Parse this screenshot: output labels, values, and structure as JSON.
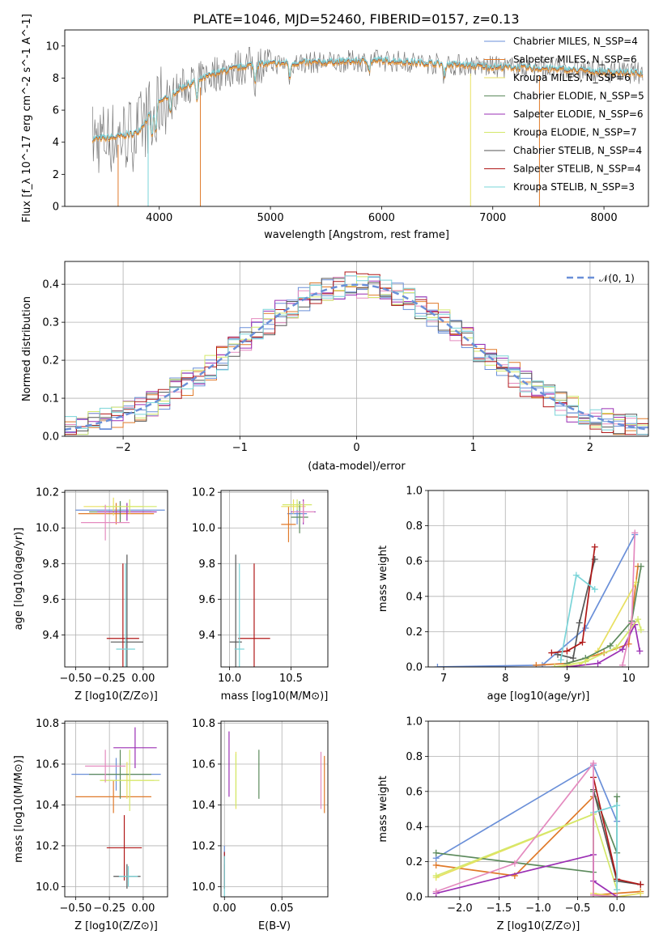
{
  "title": "PLATE=1046, MJD=52460, FIBERID=0157, z=0.13",
  "colors": [
    "#6a8fd8",
    "#e07a2a",
    "#e8e060",
    "#5c8a5c",
    "#9b2fb4",
    "#d4e86a",
    "#555555",
    "#b01818",
    "#7ad4d8"
  ],
  "chart_data": [
    {
      "id": "spectrum",
      "type": "line",
      "xlabel": "wavelength [Angstrom, rest frame]",
      "ylabel": "Flux [f_λ 10^-17 erg cm^-2 s^-1 A^-1]",
      "xlim": [
        3150,
        8400
      ],
      "ylim": [
        0,
        11
      ],
      "xticks": [
        4000,
        5000,
        6000,
        7000,
        8000
      ],
      "yticks": [
        0,
        2,
        4,
        6,
        8,
        10
      ],
      "grid": false,
      "legend_position": "top-right",
      "series": [
        {
          "name": "Chabrier MILES, N_SSP=4"
        },
        {
          "name": "Salpeter MILES, N_SSP=6"
        },
        {
          "name": "Kroupa MILES, N_SSP=6"
        },
        {
          "name": "Chabrier ELODIE, N_SSP=5"
        },
        {
          "name": "Salpeter ELODIE, N_SSP=6"
        },
        {
          "name": "Kroupa ELODIE, N_SSP=7"
        },
        {
          "name": "Chabrier STELIB, N_SSP=4"
        },
        {
          "name": "Salpeter STELIB, N_SSP=4"
        },
        {
          "name": "Kroupa STELIB, N_SSP=3"
        }
      ],
      "continuum": {
        "x": [
          3400,
          3600,
          3800,
          4000,
          4200,
          4500,
          4800,
          5000,
          5500,
          6000,
          6500,
          7000,
          7500,
          8000,
          8350
        ],
        "y": [
          4.2,
          4.3,
          4.6,
          6.5,
          7.4,
          8.3,
          8.8,
          8.9,
          9.0,
          9.1,
          8.9,
          8.7,
          8.6,
          8.4,
          8.3
        ]
      }
    },
    {
      "id": "residuals",
      "type": "histogram",
      "xlabel": "(data-model)/error",
      "ylabel": "Normed distribution",
      "xlim": [
        -2.5,
        2.5
      ],
      "ylim": [
        0,
        0.46
      ],
      "xticks": [
        -2,
        -1,
        0,
        1,
        2
      ],
      "yticks": [
        0.0,
        0.1,
        0.2,
        0.3,
        0.4
      ],
      "grid": true,
      "legend_position": "top-right",
      "reference": {
        "name": "𝒩(0, 1)",
        "mean": 0,
        "sigma": 1
      },
      "bin_width": 0.1
    },
    {
      "id": "age_vs_Z",
      "type": "scatter",
      "xlabel": "Z [log10(Z/Z⊙)]",
      "ylabel": "age [log10(age/yr)]",
      "xlim": [
        -0.58,
        0.18
      ],
      "ylim": [
        9.22,
        10.21
      ],
      "xticks": [
        -0.5,
        -0.25,
        0.0
      ],
      "xticklabels": [
        "−0.50",
        "−0.25",
        "0.00"
      ],
      "yticks": [
        9.4,
        9.6,
        9.8,
        10.0,
        10.2
      ],
      "grid": true,
      "points": [
        {
          "c": 0,
          "x": -0.17,
          "xe": 0.33,
          "y": 10.1,
          "ye": 0.05
        },
        {
          "c": 1,
          "x": -0.2,
          "xe": 0.28,
          "y": 10.08,
          "ye": 0.06
        },
        {
          "c": 2,
          "x": -0.22,
          "xe": 0.22,
          "y": 10.12,
          "ye": 0.05
        },
        {
          "c": 3,
          "x": -0.17,
          "xe": 0.23,
          "y": 10.09,
          "ye": 0.06
        },
        {
          "c": 4,
          "x": -0.12,
          "xe": 0.22,
          "y": 10.09,
          "ye": 0.05
        },
        {
          "c": 5,
          "x": -0.1,
          "xe": 0.2,
          "y": 10.12,
          "ye": 0.04
        },
        {
          "c": 6,
          "x": -0.12,
          "xe": 0.12,
          "y": 9.36,
          "ye": 0.49
        },
        {
          "c": 7,
          "x": -0.15,
          "xe": 0.12,
          "y": 9.38,
          "ye": 0.42
        },
        {
          "c": 8,
          "x": -0.13,
          "xe": 0.07,
          "y": 9.32,
          "ye": 0.48
        },
        {
          "c": 9,
          "x": -0.28,
          "xe": 0.18,
          "y": 10.03,
          "ye": 0.1
        }
      ]
    },
    {
      "id": "age_vs_mass",
      "type": "scatter",
      "xlabel": "mass [log10(M/M⊙)]",
      "ylabel": "",
      "xlim": [
        9.93,
        10.8
      ],
      "ylim": [
        9.22,
        10.21
      ],
      "xticks": [
        10.0,
        10.5
      ],
      "xticklabels": [
        "10.0",
        "10.5"
      ],
      "yticks": [
        9.4,
        9.6,
        9.8,
        10.0,
        10.2
      ],
      "grid": true,
      "points": [
        {
          "c": 0,
          "x": 10.55,
          "xe": 0.08,
          "y": 10.08,
          "ye": 0.06
        },
        {
          "c": 1,
          "x": 10.48,
          "xe": 0.06,
          "y": 10.02,
          "ye": 0.1
        },
        {
          "c": 2,
          "x": 10.52,
          "xe": 0.1,
          "y": 10.12,
          "ye": 0.04
        },
        {
          "c": 3,
          "x": 10.57,
          "xe": 0.07,
          "y": 10.06,
          "ye": 0.09
        },
        {
          "c": 4,
          "x": 10.6,
          "xe": 0.1,
          "y": 10.09,
          "ye": 0.07
        },
        {
          "c": 5,
          "x": 10.55,
          "xe": 0.12,
          "y": 10.13,
          "ye": 0.03
        },
        {
          "c": 6,
          "x": 10.05,
          "xe": 0.05,
          "y": 9.36,
          "ye": 0.49
        },
        {
          "c": 7,
          "x": 10.2,
          "xe": 0.13,
          "y": 9.38,
          "ye": 0.42
        },
        {
          "c": 8,
          "x": 10.08,
          "xe": 0.04,
          "y": 9.32,
          "ye": 0.48
        },
        {
          "c": 9,
          "x": 10.6,
          "xe": 0.09,
          "y": 10.09,
          "ye": 0.06
        }
      ]
    },
    {
      "id": "weight_vs_age",
      "type": "line",
      "xlabel": "age [log10(age/yr)]",
      "ylabel": "mass weight",
      "xlim": [
        6.75,
        10.32
      ],
      "ylim": [
        0,
        1
      ],
      "xticks": [
        7,
        8,
        9,
        10
      ],
      "yticks": [
        0.0,
        0.2,
        0.4,
        0.6,
        0.8,
        1.0
      ],
      "grid": true,
      "series": [
        {
          "c": 0,
          "x": [
            6.9,
            8.6,
            9.3,
            10.1
          ],
          "y": [
            0.0,
            0.01,
            0.22,
            0.75
          ]
        },
        {
          "c": 1,
          "x": [
            8.5,
            9.0,
            9.6,
            10.0,
            10.15
          ],
          "y": [
            0.01,
            0.02,
            0.08,
            0.13,
            0.57
          ]
        },
        {
          "c": 2,
          "x": [
            8.8,
            9.2,
            9.5,
            10.12
          ],
          "y": [
            0.0,
            0.01,
            0.09,
            0.48
          ]
        },
        {
          "c": 3,
          "x": [
            9.0,
            9.3,
            9.7,
            10.05,
            10.2
          ],
          "y": [
            0.02,
            0.05,
            0.12,
            0.26,
            0.57
          ]
        },
        {
          "c": 4,
          "x": [
            9.0,
            9.5,
            9.9,
            10.1,
            10.18
          ],
          "y": [
            0.0,
            0.02,
            0.1,
            0.24,
            0.09
          ]
        },
        {
          "c": 5,
          "x": [
            8.8,
            9.3,
            9.8,
            10.15,
            10.2
          ],
          "y": [
            0.0,
            0.03,
            0.11,
            0.27,
            0.21
          ]
        },
        {
          "c": 6,
          "x": [
            8.85,
            9.1,
            9.2,
            9.45
          ],
          "y": [
            0.07,
            0.05,
            0.25,
            0.61
          ]
        },
        {
          "c": 7,
          "x": [
            8.75,
            9.0,
            9.25,
            9.45
          ],
          "y": [
            0.08,
            0.09,
            0.14,
            0.68
          ]
        },
        {
          "c": 8,
          "x": [
            8.9,
            9.15,
            9.45
          ],
          "y": [
            0.04,
            0.52,
            0.44
          ]
        },
        {
          "c": 9,
          "x": [
            9.9,
            10.05,
            10.1
          ],
          "y": [
            0.01,
            0.25,
            0.76
          ]
        }
      ]
    },
    {
      "id": "mass_vs_Z",
      "type": "scatter",
      "xlabel": "Z [log10(Z/Z⊙)]",
      "ylabel": "mass [log10(M/M⊙)]",
      "xlim": [
        -0.58,
        0.18
      ],
      "ylim": [
        9.95,
        10.81
      ],
      "xticks": [
        -0.5,
        -0.25,
        0.0
      ],
      "xticklabels": [
        "−0.50",
        "−0.25",
        "0.00"
      ],
      "yticks": [
        10.0,
        10.2,
        10.4,
        10.6,
        10.8
      ],
      "grid": true,
      "points": [
        {
          "c": 0,
          "x": -0.2,
          "xe": 0.33,
          "y": 10.55,
          "ye": 0.08
        },
        {
          "c": 1,
          "x": -0.22,
          "xe": 0.28,
          "y": 10.44,
          "ye": 0.08
        },
        {
          "c": 2,
          "x": -0.12,
          "xe": 0.2,
          "y": 10.52,
          "ye": 0.09
        },
        {
          "c": 3,
          "x": -0.17,
          "xe": 0.23,
          "y": 10.55,
          "ye": 0.12
        },
        {
          "c": 4,
          "x": -0.06,
          "xe": 0.16,
          "y": 10.68,
          "ye": 0.1
        },
        {
          "c": 5,
          "x": -0.1,
          "xe": 0.22,
          "y": 10.52,
          "ye": 0.15
        },
        {
          "c": 6,
          "x": -0.12,
          "xe": 0.1,
          "y": 10.05,
          "ye": 0.06
        },
        {
          "c": 7,
          "x": -0.14,
          "xe": 0.13,
          "y": 10.19,
          "ye": 0.16
        },
        {
          "c": 8,
          "x": -0.11,
          "xe": 0.07,
          "y": 10.05,
          "ye": 0.05
        },
        {
          "c": 9,
          "x": -0.28,
          "xe": 0.15,
          "y": 10.59,
          "ye": 0.08
        }
      ]
    },
    {
      "id": "mass_vs_ebv",
      "type": "scatter",
      "xlabel": "E(B-V)",
      "ylabel": "",
      "xlim": [
        -0.003,
        0.09
      ],
      "ylim": [
        9.95,
        10.81
      ],
      "xticks": [
        0.0,
        0.05
      ],
      "xticklabels": [
        "0.00",
        "0.05"
      ],
      "yticks": [
        10.0,
        10.2,
        10.4,
        10.6,
        10.8
      ],
      "grid": true,
      "points": [
        {
          "c": 0,
          "x": 0.0,
          "y": 10.1,
          "ye": 0.1
        },
        {
          "c": 1,
          "x": 0.087,
          "y": 10.5,
          "ye": 0.14
        },
        {
          "c": 2,
          "x": 0.01,
          "y": 10.52,
          "ye": 0.14
        },
        {
          "c": 3,
          "x": 0.03,
          "y": 10.55,
          "ye": 0.12
        },
        {
          "c": 4,
          "x": 0.004,
          "y": 10.6,
          "ye": 0.16
        },
        {
          "c": 5,
          "x": 0.01,
          "y": 10.52,
          "ye": 0.13
        },
        {
          "c": 6,
          "x": 0.0,
          "y": 10.05,
          "ye": 0.06
        },
        {
          "c": 7,
          "x": 0.0,
          "y": 10.08,
          "ye": 0.09
        },
        {
          "c": 8,
          "x": 0.0,
          "y": 10.05,
          "ye": 0.1
        },
        {
          "c": 9,
          "x": 0.084,
          "y": 10.52,
          "ye": 0.14
        }
      ]
    },
    {
      "id": "weight_vs_Z",
      "type": "line",
      "xlabel": "Z [log10(Z/Z⊙)]",
      "ylabel": "mass weight",
      "xlim": [
        -2.4,
        0.4
      ],
      "ylim": [
        0,
        1
      ],
      "xticks": [
        -2.0,
        -1.5,
        -1.0,
        -0.5,
        0.0
      ],
      "xticklabels": [
        "−2.0",
        "−1.5",
        "−1.0",
        "−0.5",
        "0.0"
      ],
      "yticks": [
        0.0,
        0.2,
        0.4,
        0.6,
        0.8,
        1.0
      ],
      "grid": true,
      "series": [
        {
          "c": 0,
          "x": [
            -2.3,
            -0.3,
            0.0
          ],
          "y": [
            0.22,
            0.75,
            0.43
          ]
        },
        {
          "c": 1,
          "x": [
            -2.3,
            -1.3,
            -0.3,
            -0.3,
            0.3
          ],
          "y": [
            0.18,
            0.12,
            0.57,
            0.01,
            0.03
          ]
        },
        {
          "c": 2,
          "x": [
            -2.3,
            -0.3,
            -0.3,
            0.0,
            0.3
          ],
          "y": [
            0.11,
            0.47,
            0.02,
            0.0,
            0.02
          ]
        },
        {
          "c": 3,
          "x": [
            -2.3,
            -0.3,
            -0.3,
            0.0,
            0.0
          ],
          "y": [
            0.25,
            0.14,
            0.6,
            0.25,
            0.57
          ]
        },
        {
          "c": 4,
          "x": [
            -2.3,
            -0.3,
            -0.3,
            0.0
          ],
          "y": [
            0.02,
            0.24,
            0.09,
            0.0
          ]
        },
        {
          "c": 5,
          "x": [
            -2.3,
            -0.3,
            0.0
          ],
          "y": [
            0.12,
            0.47,
            0.04
          ]
        },
        {
          "c": 6,
          "x": [
            -0.3,
            0.0,
            0.3
          ],
          "y": [
            0.61,
            0.09,
            0.07
          ]
        },
        {
          "c": 7,
          "x": [
            -0.3,
            0.0,
            0.3
          ],
          "y": [
            0.68,
            0.1,
            0.07
          ]
        },
        {
          "c": 8,
          "x": [
            -0.3,
            0.0,
            0.0
          ],
          "y": [
            0.48,
            0.52,
            0.04
          ]
        },
        {
          "c": 9,
          "x": [
            -2.3,
            -1.3,
            -0.3,
            -0.3,
            0.0
          ],
          "y": [
            0.03,
            0.19,
            0.76,
            0.01,
            0.0
          ]
        }
      ]
    }
  ]
}
